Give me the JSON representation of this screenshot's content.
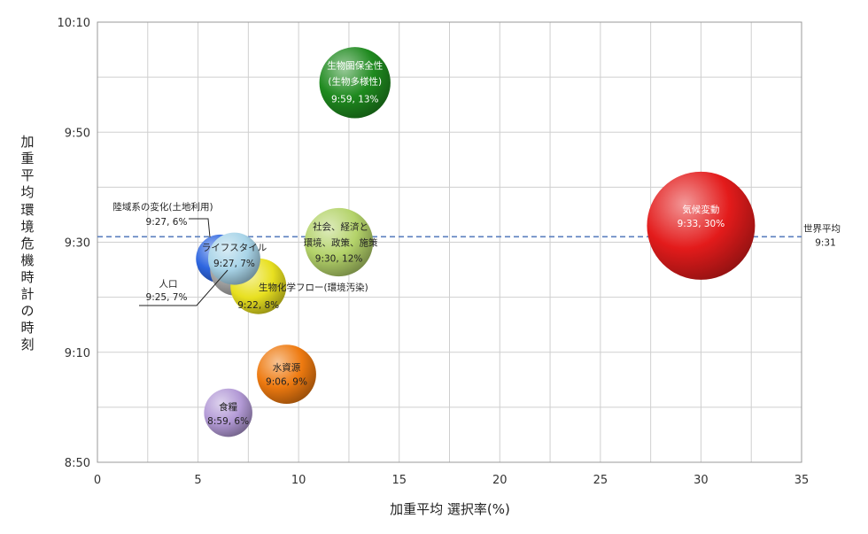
{
  "chart_data": {
    "type": "bubble",
    "xlabel": "加重平均 選択率(%)",
    "ylabel": "加重平均 環境危機時計の時刻",
    "xlim": [
      0,
      35
    ],
    "ylim_minutes": [
      530,
      610
    ],
    "x_ticks": [
      "0",
      "5",
      "10",
      "15",
      "20",
      "25",
      "30",
      "35"
    ],
    "y_ticks": [
      "8:50",
      "9:10",
      "9:30",
      "9:50",
      "10:10"
    ],
    "y_tick_values_minutes": [
      530,
      550,
      570,
      590,
      610
    ],
    "grid": true,
    "reference_line": {
      "label": "世界平均",
      "value_label": "9:31",
      "y_minutes": 571
    },
    "bubbles": [
      {
        "label": "生物圏保全性",
        "label2": "(生物多様性)",
        "value_label": "9:59, 13%",
        "x": 12.8,
        "time": "9:59",
        "y_minutes": 599,
        "size_pct": 13,
        "color": "#1f8a1f"
      },
      {
        "label": "気候変動",
        "value_label": "9:33, 30%",
        "x": 30,
        "time": "9:33",
        "y_minutes": 573,
        "size_pct": 30,
        "color": "#e31b1b"
      },
      {
        "label": "社会、経済と",
        "label2": "環境、政策、施策",
        "value_label": "9:30, 12%",
        "x": 12.0,
        "time": "9:30",
        "y_minutes": 570,
        "size_pct": 12,
        "color": "#b4d36a"
      },
      {
        "label": "陸域系の変化(土地利用)",
        "value_label": "9:27, 6%",
        "x": 6.1,
        "time": "9:27",
        "y_minutes": 567,
        "size_pct": 6,
        "color": "#2e66e0"
      },
      {
        "label": "人口",
        "value_label": "9:25, 7%",
        "x": 6.9,
        "time": "9:25",
        "y_minutes": 565,
        "size_pct": 7,
        "color": "#a8a8a8"
      },
      {
        "label": "生物化学フロー(環境汚染)",
        "value_label": "9:22, 8%",
        "x": 8.0,
        "time": "9:22",
        "y_minutes": 562,
        "size_pct": 8,
        "color": "#e8e020"
      },
      {
        "label": "ライフスタイル",
        "value_label": "9:27, 7%",
        "x": 6.8,
        "time": "9:27",
        "y_minutes": 567,
        "size_pct": 7,
        "color": "#a8d4e8"
      },
      {
        "label": "水資源",
        "value_label": "9:06, 9%",
        "x": 9.4,
        "time": "9:06",
        "y_minutes": 546,
        "size_pct": 9,
        "color": "#ee7a10"
      },
      {
        "label": "食糧",
        "value_label": "8:59, 6%",
        "x": 6.5,
        "time": "8:59",
        "y_minutes": 539,
        "size_pct": 6,
        "color": "#b39ad6"
      }
    ]
  }
}
